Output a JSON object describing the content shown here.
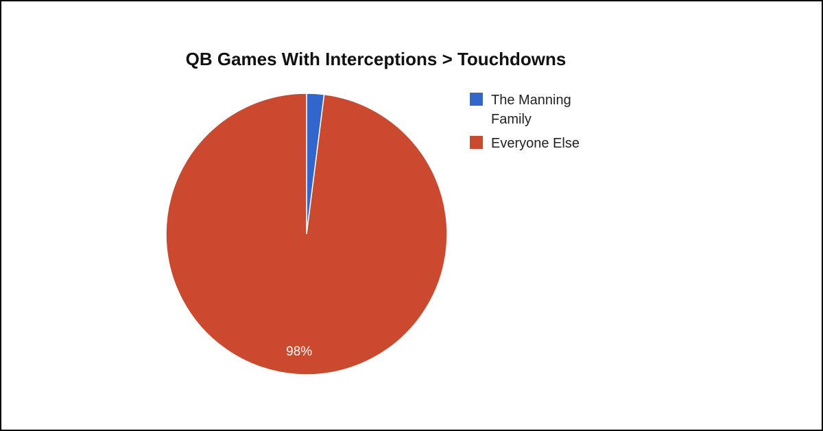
{
  "chart_data": {
    "type": "pie",
    "title": "QB Games With Interceptions > Touchdowns",
    "categories": [
      "The Manning Family",
      "Everyone Else"
    ],
    "values": [
      2,
      98
    ],
    "value_labels": [
      null,
      "98%"
    ],
    "colors": [
      "#3366cc",
      "#cb4a2f"
    ],
    "legend": "right"
  }
}
